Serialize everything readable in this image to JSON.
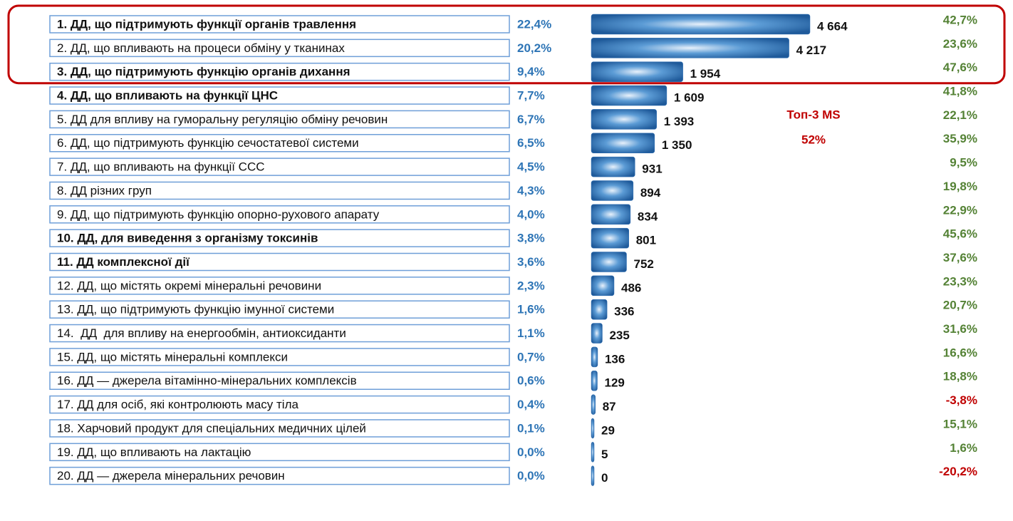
{
  "chart_data": {
    "type": "bar",
    "orientation": "horizontal",
    "categories": [
      "1. ДД, що підтримують функції органів травлення",
      "2. ДД, що впливають на процеси обміну у тканинах",
      "3. ДД, що підтримують функцію органів дихання",
      "4. ДД, що впливають на функції ЦНС",
      "5. ДД для впливу на гуморальну регуляцію обміну речовин",
      "6. ДД, що підтримують функцію сечостатевої системи",
      "7. ДД, що впливають на функції ССС",
      "8. ДД різних груп",
      "9. ДД, що підтримують функцію опорно-рухового апарату",
      "10. ДД, для виведення з організму токсинів",
      "11. ДД комплексної дії",
      "12. ДД, що містять окремі мінеральні речовини",
      "13. ДД, що підтримують функцію імунної системи",
      "14.  ДД  для впливу на енергообмін, антиоксиданти",
      "15. ДД, що містять мінеральні комплекси",
      "16. ДД — джерела вітамінно-мінеральних комплексів",
      "17. ДД для осіб, які контролюють масу тіла",
      "18. Харчовий продукт для спеціальних медичних цілей",
      "19. ДД, що впливають на лактацію",
      "20. ДД — джерела мінеральних речовин"
    ],
    "bold_categories": [
      0,
      2,
      3,
      9,
      10
    ],
    "values": [
      4664,
      4217,
      1954,
      1609,
      1393,
      1350,
      931,
      894,
      834,
      801,
      752,
      486,
      336,
      235,
      136,
      129,
      87,
      29,
      5,
      0
    ],
    "value_labels": [
      "4 664",
      "4 217",
      "1 954",
      "1 609",
      "1 393",
      "1 350",
      "931",
      "894",
      "834",
      "801",
      "752",
      "486",
      "336",
      "235",
      "136",
      "129",
      "87",
      "29",
      "5",
      "0"
    ],
    "color": "#2e6fb5",
    "share": [
      22.4,
      20.2,
      9.4,
      7.7,
      6.7,
      6.5,
      4.5,
      4.3,
      4.0,
      3.8,
      3.6,
      2.3,
      1.6,
      1.1,
      0.7,
      0.6,
      0.4,
      0.1,
      0.0,
      0.0
    ],
    "share_labels": [
      "22,4%",
      "20,2%",
      "9,4%",
      "7,7%",
      "6,7%",
      "6,5%",
      "4,5%",
      "4,3%",
      "4,0%",
      "3,8%",
      "3,6%",
      "2,3%",
      "1,6%",
      "1,1%",
      "0,7%",
      "0,6%",
      "0,4%",
      "0,1%",
      "0,0%",
      "0,0%"
    ],
    "share_color": "#2e75b6",
    "growth": [
      42.7,
      23.6,
      47.6,
      41.8,
      22.1,
      35.9,
      9.5,
      19.8,
      22.9,
      45.6,
      37.6,
      23.3,
      20.7,
      31.6,
      16.6,
      18.8,
      -3.8,
      15.1,
      1.6,
      -20.2
    ],
    "growth_labels": [
      "42,7%",
      "23,6%",
      "47,6%",
      "41,8%",
      "22,1%",
      "35,9%",
      "9,5%",
      "19,8%",
      "22,9%",
      "45,6%",
      "37,6%",
      "23,3%",
      "20,7%",
      "31,6%",
      "16,6%",
      "18,8%",
      "-3,8%",
      "15,1%",
      "1,6%",
      "-20,2%"
    ],
    "growth_positive_color": "#548235",
    "growth_negative_color": "#c00000",
    "highlight_rows": 3,
    "annotations": [
      "Топ-3 MS",
      "52%"
    ],
    "annotation_color": "#c00000"
  }
}
